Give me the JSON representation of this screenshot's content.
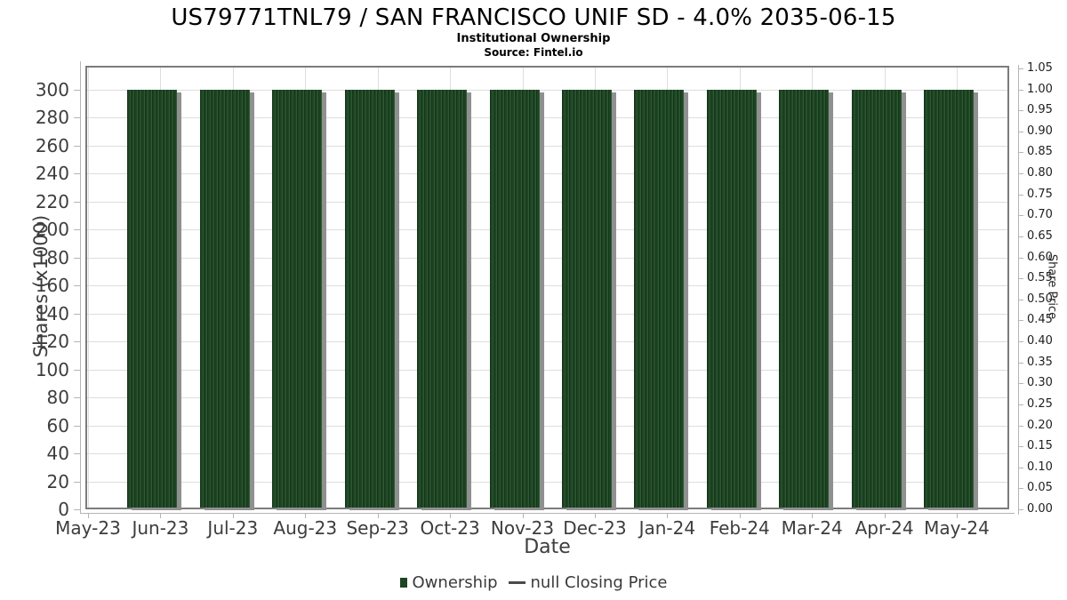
{
  "chart_data": {
    "type": "bar",
    "title": "US79771TNL79 / SAN FRANCISCO UNIF SD - 4.0% 2035-06-15",
    "subtitle": "Institutional Ownership",
    "source": "Source: Fintel.io",
    "xlabel": "Date",
    "ylabel_left": "Shares (x1000)",
    "ylabel_right": "Share Price",
    "categories": [
      "May-23",
      "Jun-23",
      "Jul-23",
      "Aug-23",
      "Sep-23",
      "Oct-23",
      "Nov-23",
      "Dec-23",
      "Jan-24",
      "Feb-24",
      "Mar-24",
      "Apr-24",
      "May-24"
    ],
    "series": [
      {
        "name": "Ownership",
        "type": "bar",
        "color": "#1d4423",
        "values": [
          null,
          300,
          300,
          300,
          300,
          300,
          300,
          300,
          300,
          300,
          300,
          300,
          300
        ]
      },
      {
        "name": "null Closing Price",
        "type": "line",
        "color": "#4a4a4a",
        "values": []
      }
    ],
    "left_axis": {
      "label": "Shares (x1000)",
      "min": 0,
      "max": 300,
      "step": 20,
      "ticks": [
        0,
        20,
        40,
        60,
        80,
        100,
        120,
        140,
        160,
        180,
        200,
        220,
        240,
        260,
        280,
        300
      ]
    },
    "right_axis": {
      "label": "Share Price",
      "min": 0,
      "max": 1.05,
      "step": 0.05,
      "tick_labels": [
        "0.00",
        "0.05",
        "0.10",
        "0.15",
        "0.20",
        "0.25",
        "0.30",
        "0.35",
        "0.40",
        "0.45",
        "0.50",
        "0.55",
        "0.60",
        "0.65",
        "0.70",
        "0.75",
        "0.80",
        "0.85",
        "0.90",
        "0.95",
        "1.00",
        "1.05"
      ]
    },
    "legend": [
      {
        "label": "Ownership",
        "marker": "square",
        "color": "#1d4423"
      },
      {
        "label": "null Closing Price",
        "marker": "line",
        "color": "#4a4a4a"
      }
    ],
    "grid": true,
    "legend_position": "bottom-center",
    "colors": {
      "bar": "#1d4423",
      "bar_stripe": "#2f5a34",
      "bar_shadow": "#909090",
      "gridline": "#dedede",
      "panel_border": "#7c7c7c"
    }
  }
}
